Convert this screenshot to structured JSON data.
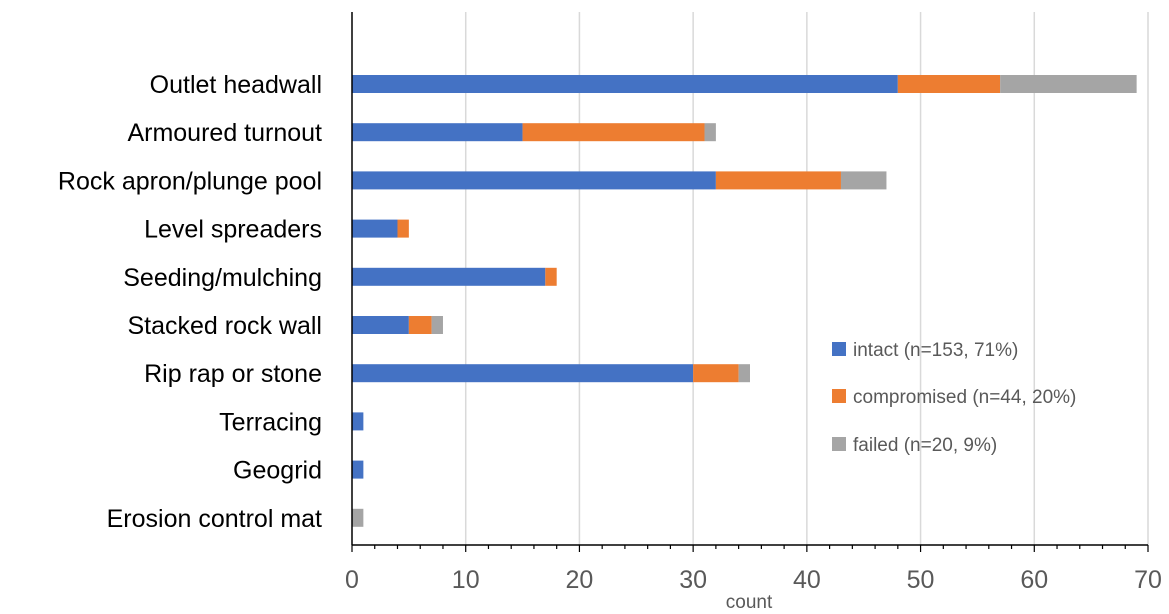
{
  "chart_data": {
    "type": "bar",
    "orientation": "horizontal",
    "stacked": true,
    "categories": [
      "Outlet headwall",
      "Armoured turnout",
      "Rock apron/plunge pool",
      "Level spreaders",
      "Seeding/mulching",
      "Stacked rock wall",
      "Rip rap or stone",
      "Terracing",
      "Geogrid",
      "Erosion control mat"
    ],
    "series": [
      {
        "name": "intact (n=153, 71%)",
        "color": "#4472C4",
        "values": [
          48,
          15,
          32,
          4,
          17,
          5,
          30,
          1,
          1,
          0
        ]
      },
      {
        "name": "compromised (n=44, 20%)",
        "color": "#ED7D31",
        "values": [
          9,
          16,
          11,
          1,
          1,
          2,
          4,
          0,
          0,
          0
        ]
      },
      {
        "name": "failed (n=20, 9%)",
        "color": "#A5A5A5",
        "values": [
          12,
          1,
          4,
          0,
          0,
          1,
          1,
          0,
          0,
          1
        ]
      }
    ],
    "xlabel": "count",
    "ylabel": "",
    "title": "",
    "xlim": [
      0,
      70
    ],
    "xticks": [
      0,
      10,
      20,
      30,
      40,
      50,
      60,
      70
    ],
    "grid": "vertical",
    "legend_position": "right"
  }
}
